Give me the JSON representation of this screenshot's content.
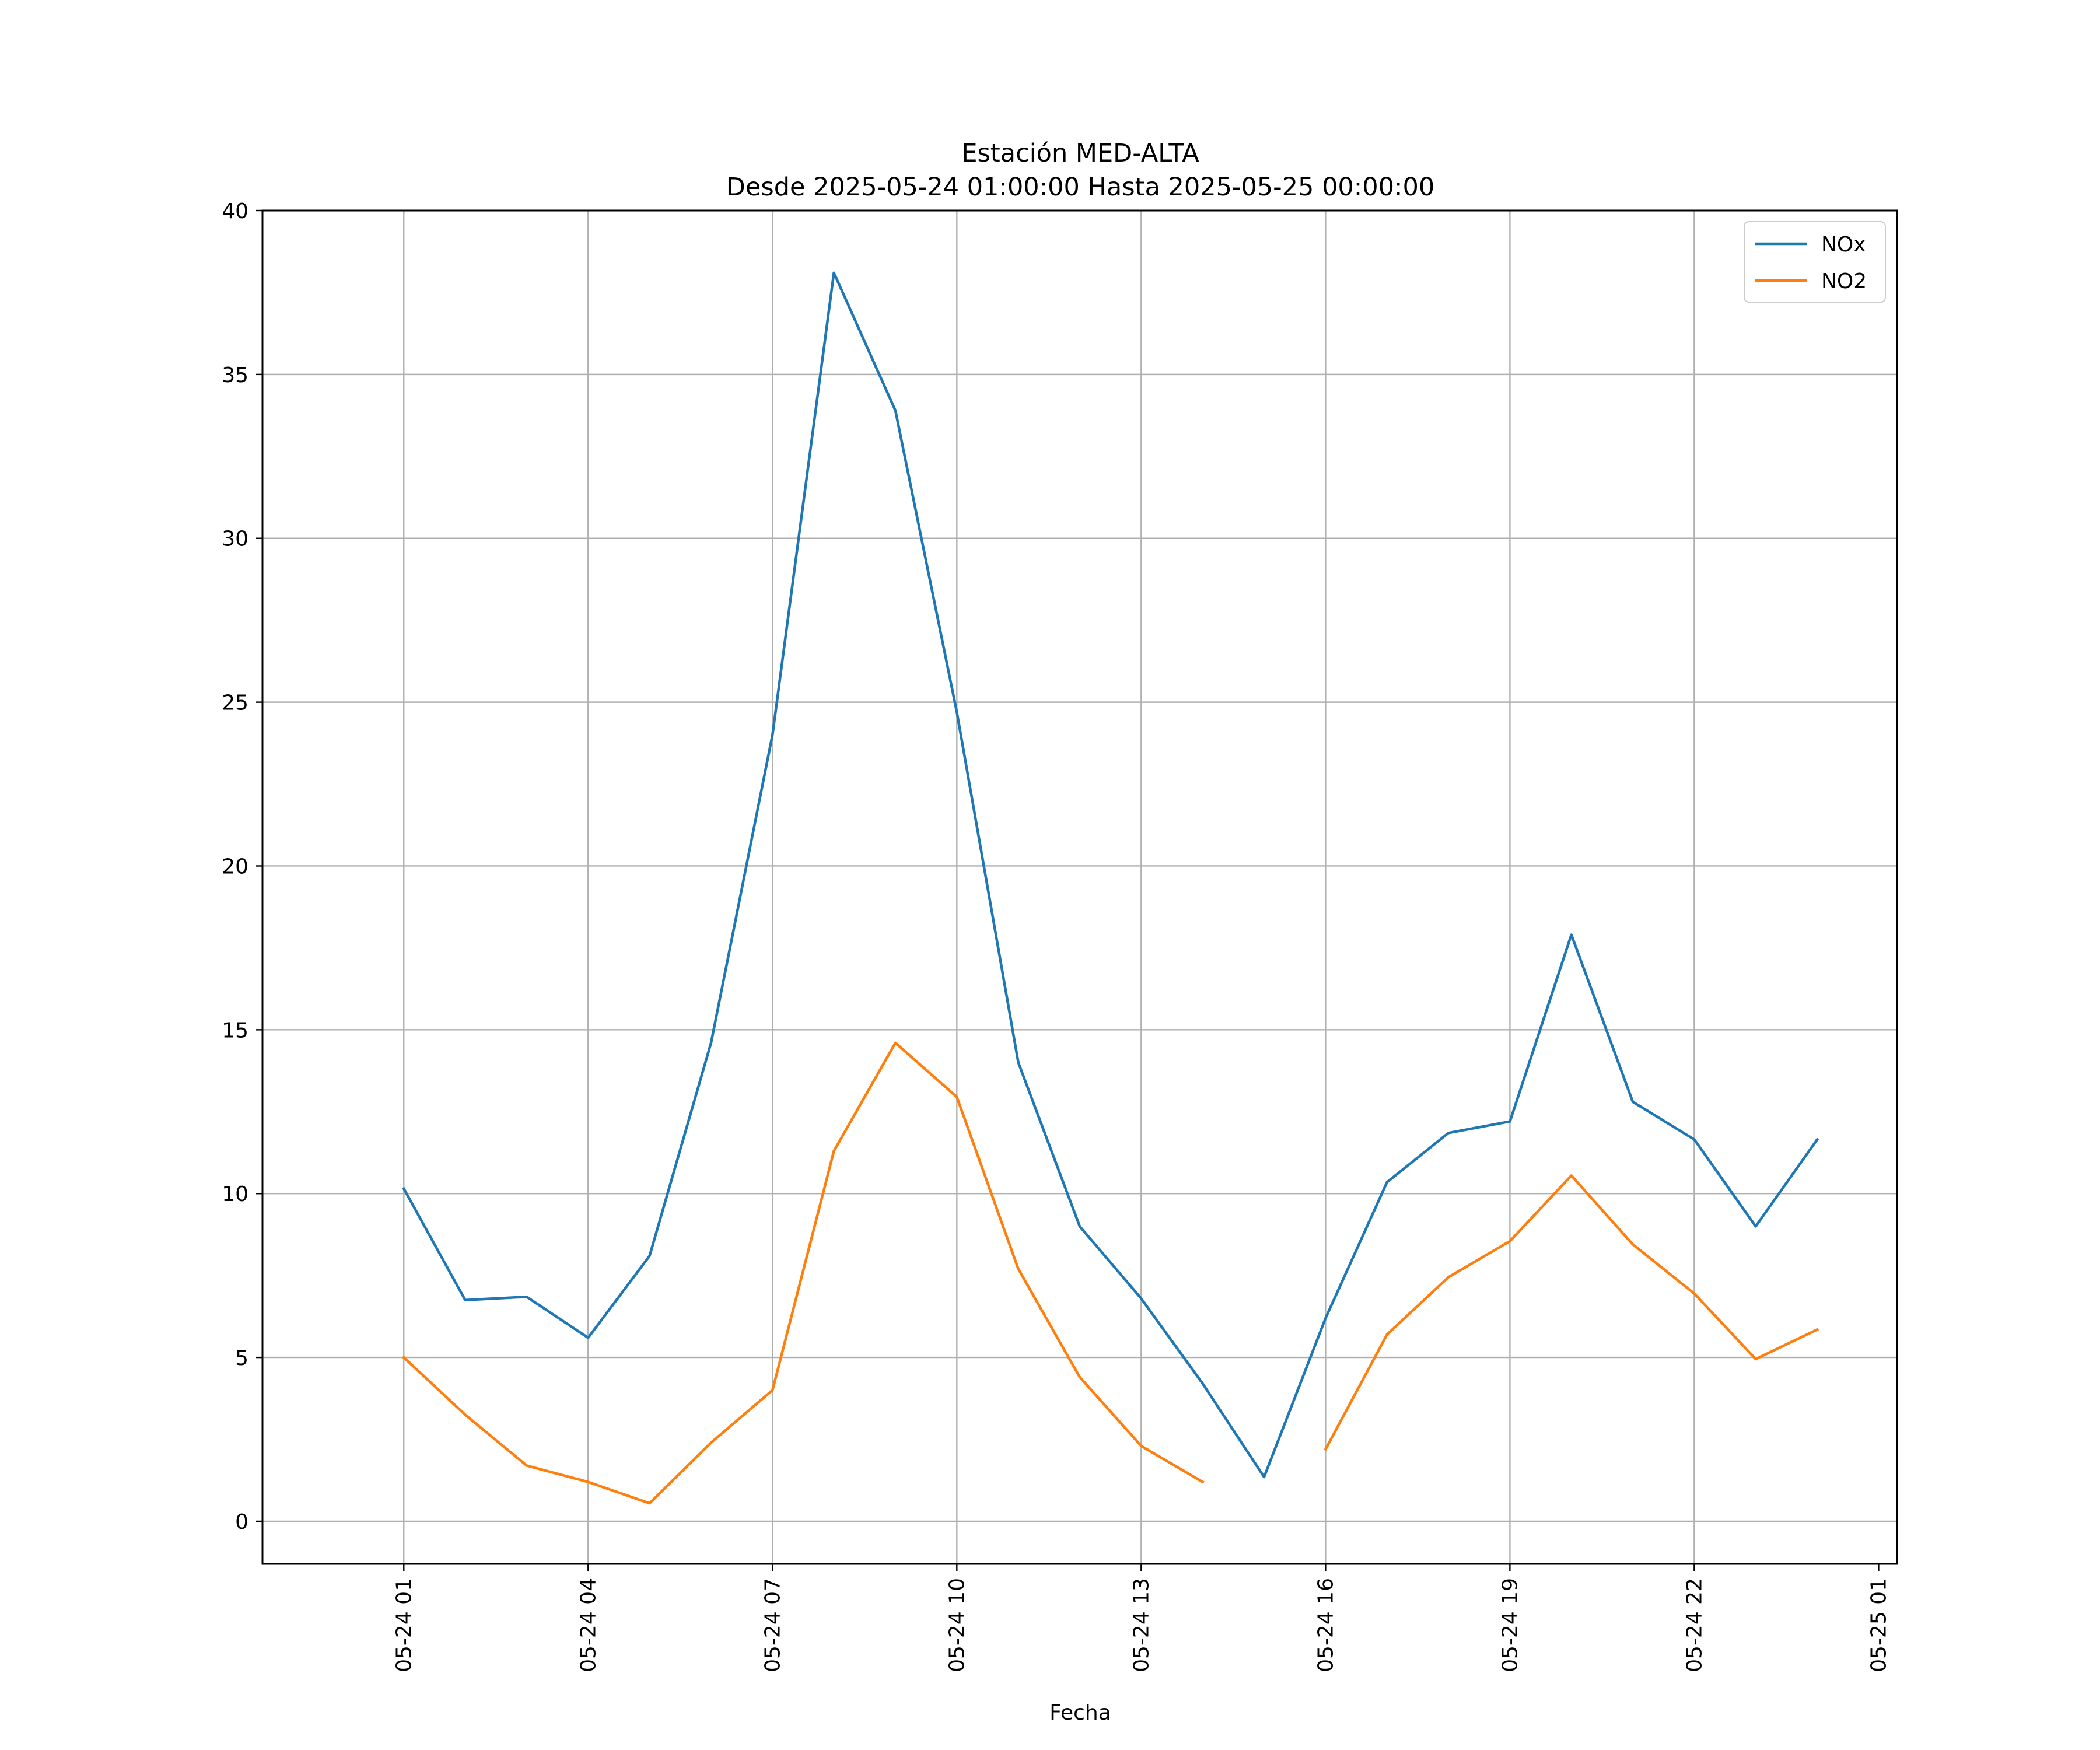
{
  "chart_data": {
    "type": "line",
    "title": "Estación MED-ALTA",
    "subtitle": "Desde 2025-05-24 01:00:00 Hasta 2025-05-25 00:00:00",
    "xlabel": "Fecha",
    "ylabel": "",
    "ylim": [
      -1.3,
      40
    ],
    "xlim": [
      "2025-05-23 22:42",
      "2025-05-25 01:18"
    ],
    "grid": true,
    "legend_position": "top-right",
    "yticks": [
      0,
      5,
      10,
      15,
      20,
      25,
      30,
      35,
      40
    ],
    "xticks": [
      {
        "t": "2025-05-24 01:00",
        "label": "05-24 01"
      },
      {
        "t": "2025-05-24 04:00",
        "label": "05-24 04"
      },
      {
        "t": "2025-05-24 07:00",
        "label": "05-24 07"
      },
      {
        "t": "2025-05-24 10:00",
        "label": "05-24 10"
      },
      {
        "t": "2025-05-24 13:00",
        "label": "05-24 13"
      },
      {
        "t": "2025-05-24 16:00",
        "label": "05-24 16"
      },
      {
        "t": "2025-05-24 19:00",
        "label": "05-24 19"
      },
      {
        "t": "2025-05-24 22:00",
        "label": "05-24 22"
      },
      {
        "t": "2025-05-25 01:00",
        "label": "05-25 01"
      }
    ],
    "x": [
      "2025-05-24 01:00",
      "2025-05-24 02:00",
      "2025-05-24 03:00",
      "2025-05-24 04:00",
      "2025-05-24 05:00",
      "2025-05-24 06:00",
      "2025-05-24 07:00",
      "2025-05-24 08:00",
      "2025-05-24 09:00",
      "2025-05-24 10:00",
      "2025-05-24 11:00",
      "2025-05-24 12:00",
      "2025-05-24 13:00",
      "2025-05-24 14:00",
      "2025-05-24 15:00",
      "2025-05-24 16:00",
      "2025-05-24 17:00",
      "2025-05-24 18:00",
      "2025-05-24 19:00",
      "2025-05-24 20:00",
      "2025-05-24 21:00",
      "2025-05-24 22:00",
      "2025-05-24 23:00",
      "2025-05-25 00:00"
    ],
    "series": [
      {
        "name": "NOx",
        "color": "#1f77b4",
        "values": [
          10.15,
          6.75,
          6.85,
          5.6,
          8.1,
          14.6,
          24.0,
          38.1,
          33.9,
          24.7,
          14.0,
          9.0,
          6.8,
          4.2,
          1.35,
          6.2,
          10.35,
          11.85,
          12.2,
          17.9,
          12.8,
          11.65,
          9.0,
          11.65
        ]
      },
      {
        "name": "NO2",
        "color": "#ff7f0e",
        "values": [
          5.0,
          3.25,
          1.7,
          1.2,
          0.55,
          2.4,
          4.0,
          11.3,
          14.6,
          12.95,
          7.7,
          4.4,
          2.3,
          1.2,
          null,
          2.2,
          5.7,
          7.45,
          8.55,
          10.55,
          8.45,
          6.95,
          4.95,
          5.85
        ]
      }
    ]
  }
}
